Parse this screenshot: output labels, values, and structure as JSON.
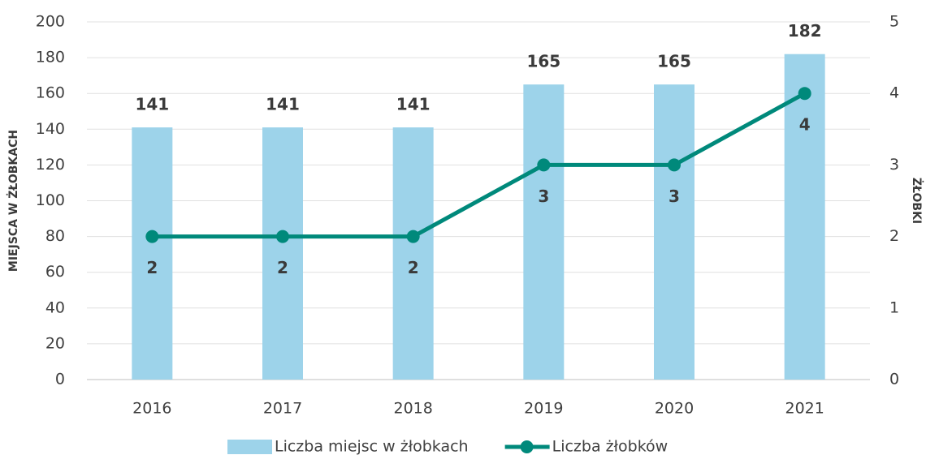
{
  "chart_data": {
    "type": "bar",
    "categories": [
      "2016",
      "2017",
      "2018",
      "2019",
      "2020",
      "2021"
    ],
    "series": [
      {
        "name": "Liczba miejsc w żłobkach",
        "type": "bar",
        "color": "#9dd3ea",
        "values": [
          141,
          141,
          141,
          165,
          165,
          182
        ]
      },
      {
        "name": "Liczba żłobków",
        "type": "line",
        "axis": "y2",
        "color": "#00897b",
        "values": [
          2,
          2,
          2,
          3,
          3,
          4
        ]
      }
    ],
    "ylabel": "MIEJSCA W ŻŁOBKACH",
    "y2label": "ŻŁOBKI",
    "ylim": [
      0,
      200
    ],
    "yticks": [
      0,
      20,
      40,
      60,
      80,
      100,
      120,
      140,
      160,
      180,
      200
    ],
    "y2lim": [
      0,
      5
    ],
    "y2ticks": [
      0,
      1,
      2,
      3,
      4,
      5
    ],
    "grid": true,
    "legend": "bottom"
  }
}
